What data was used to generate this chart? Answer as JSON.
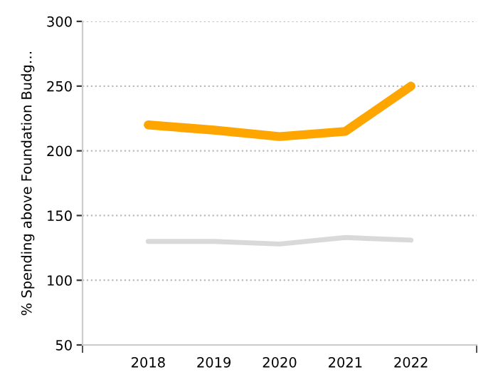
{
  "chart_data": {
    "type": "line",
    "ylabel": "% Spending above Foundation Budg…",
    "x": [
      2018,
      2019,
      2020,
      2021,
      2022
    ],
    "xlim": [
      2017,
      2023
    ],
    "xticks": [
      {
        "value": 2017,
        "label": null
      },
      2018,
      2019,
      2020,
      2021,
      2022,
      {
        "value": 2023,
        "label": null
      }
    ],
    "ylim": [
      50,
      300
    ],
    "yticks": [
      50,
      100,
      150,
      200,
      250,
      300
    ],
    "grid": "y",
    "line_style": "solid",
    "marker": "none",
    "series": [
      {
        "color": "#ffa500",
        "values": [
          220,
          216,
          211,
          215,
          250
        ]
      },
      {
        "color": "#d9d9d9",
        "values": [
          130,
          130,
          128,
          133,
          131
        ]
      }
    ]
  }
}
